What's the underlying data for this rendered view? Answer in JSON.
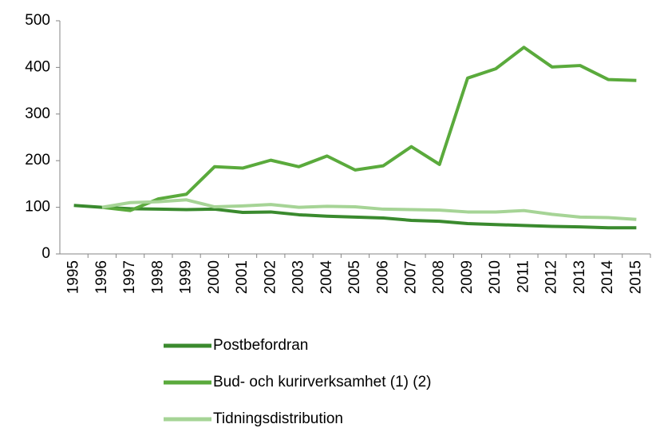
{
  "chart_data": {
    "type": "line",
    "categories": [
      "1995",
      "1996",
      "1997",
      "1998",
      "1999",
      "2000",
      "2001",
      "2002",
      "2003",
      "2004",
      "2005",
      "2006",
      "2007",
      "2008",
      "2009",
      "2010",
      "2011",
      "2012",
      "2013",
      "2014",
      "2015"
    ],
    "series": [
      {
        "name": "Postbefordran",
        "color": "#3a8a2e",
        "values": [
          104,
          100,
          97,
          96,
          95,
          96,
          89,
          90,
          84,
          81,
          79,
          77,
          72,
          70,
          65,
          63,
          61,
          59,
          58,
          56,
          56
        ]
      },
      {
        "name": "Bud- och kurirverksamhet (1) (2)",
        "color": "#5aaa3c",
        "values": [
          null,
          100,
          93,
          118,
          128,
          187,
          184,
          201,
          187,
          210,
          180,
          189,
          230,
          192,
          377,
          397,
          443,
          401,
          404,
          374,
          372
        ]
      },
      {
        "name": "Tidningsdistribution",
        "color": "#a6d496",
        "values": [
          null,
          100,
          110,
          112,
          116,
          101,
          103,
          106,
          100,
          102,
          101,
          96,
          95,
          94,
          90,
          90,
          93,
          85,
          79,
          78,
          74
        ]
      }
    ],
    "ylim": [
      0,
      500
    ],
    "yticks": [
      0,
      100,
      200,
      300,
      400,
      500
    ],
    "grid": false,
    "legend": "bottom"
  }
}
